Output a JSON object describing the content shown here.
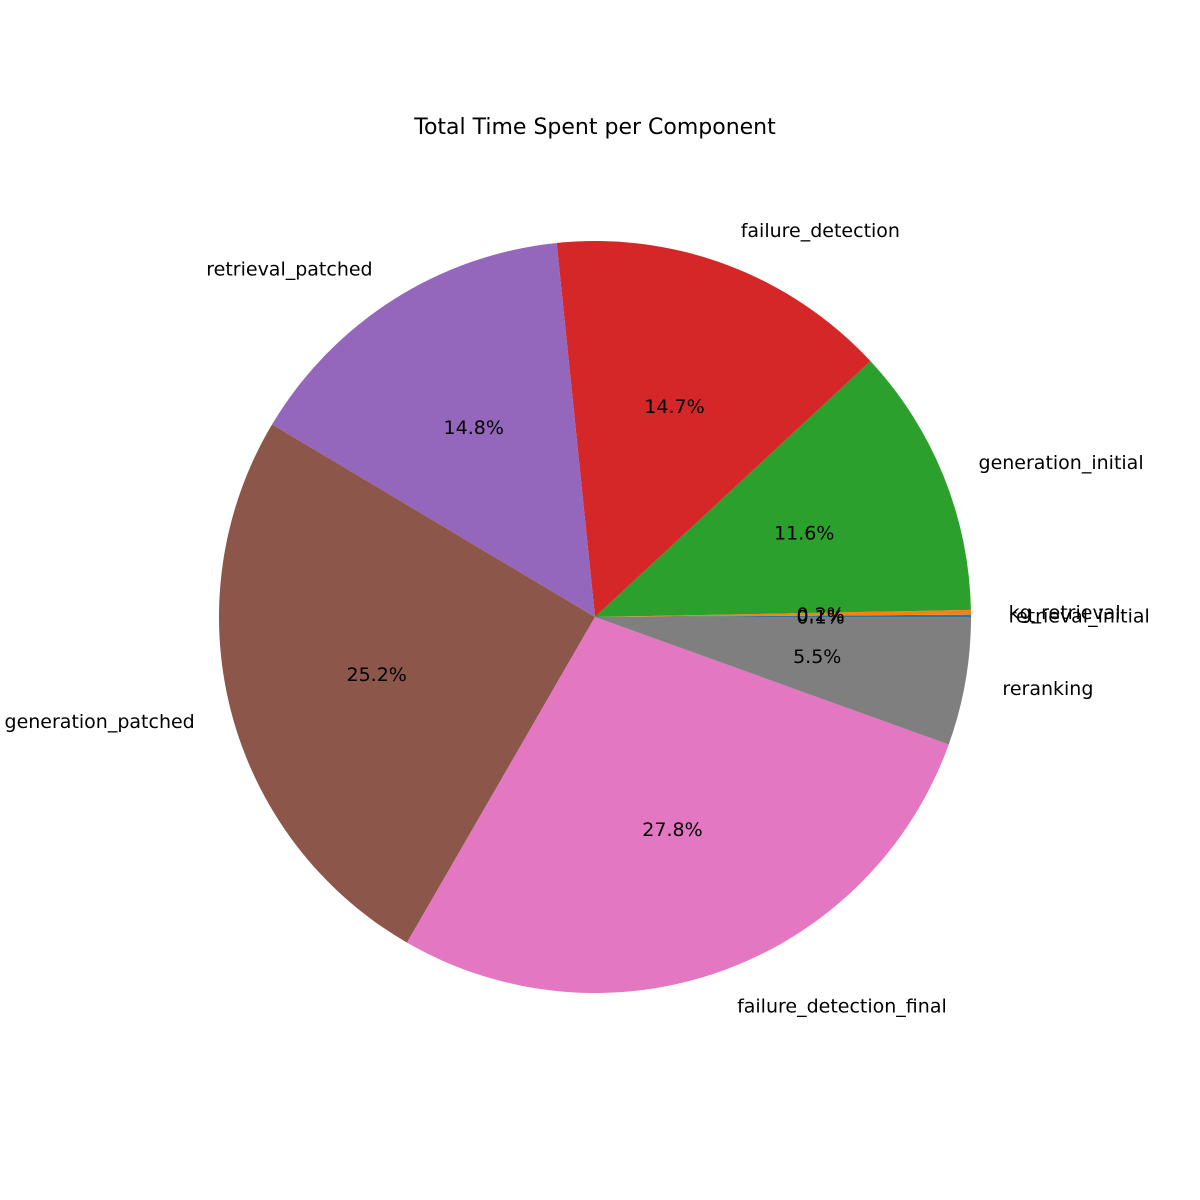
{
  "chart_data": {
    "type": "pie",
    "title": "Total Time Spent per Component",
    "start_angle_deg": 0,
    "direction": "counterclockwise",
    "slices": [
      {
        "label": "retrieval_initial",
        "pct_label": "0.1%",
        "value": 0.1,
        "color": "#1f77b4"
      },
      {
        "label": "kg_retrieval",
        "pct_label": "0.2%",
        "value": 0.2,
        "color": "#ff7f0e"
      },
      {
        "label": "generation_initial",
        "pct_label": "11.6%",
        "value": 11.6,
        "color": "#2ca02c"
      },
      {
        "label": "failure_detection",
        "pct_label": "14.7%",
        "value": 14.7,
        "color": "#d62728"
      },
      {
        "label": "retrieval_patched",
        "pct_label": "14.8%",
        "value": 14.8,
        "color": "#9467bd"
      },
      {
        "label": "generation_patched",
        "pct_label": "25.2%",
        "value": 25.2,
        "color": "#8c564b"
      },
      {
        "label": "failure_detection_final",
        "pct_label": "27.8%",
        "value": 27.8,
        "color": "#e377c2"
      },
      {
        "label": "reranking",
        "pct_label": "5.5%",
        "value": 5.5,
        "color": "#7f7f7f"
      }
    ],
    "legend": "none"
  }
}
